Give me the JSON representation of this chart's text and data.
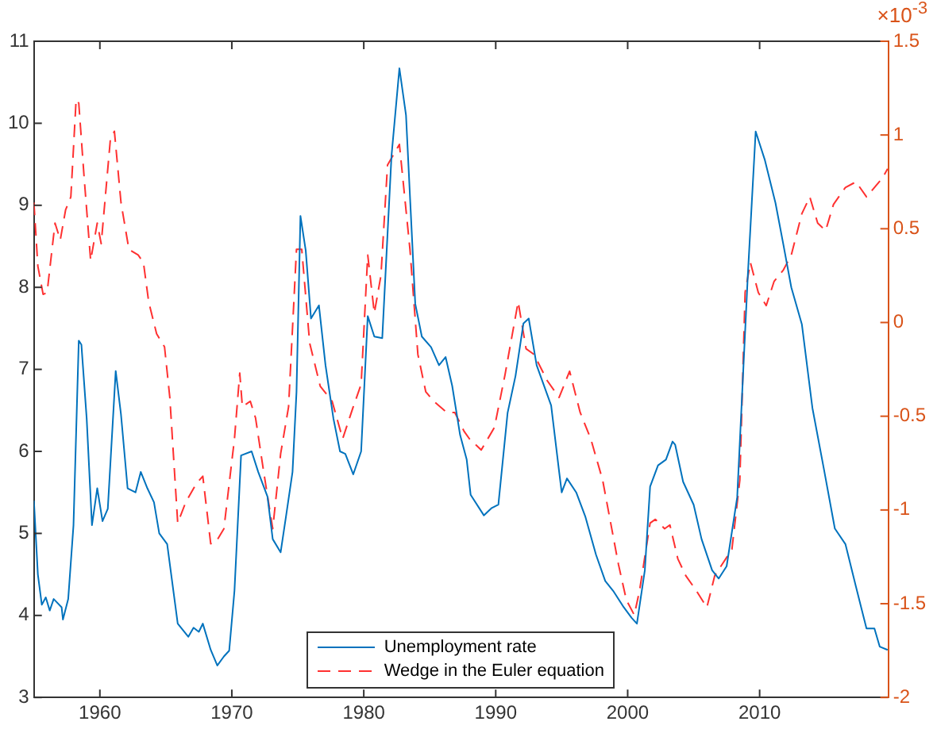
{
  "chart_data": {
    "type": "line",
    "x": [
      1955.0,
      1955.3,
      1955.6,
      1955.9,
      1956.2,
      1956.5,
      1957.1,
      1957.2,
      1957.6,
      1958.0,
      1958.4,
      1958.6,
      1959.0,
      1959.4,
      1959.8,
      1960.2,
      1960.6,
      1961.2,
      1961.6,
      1962.1,
      1962.7,
      1963.1,
      1963.6,
      1964.1,
      1964.5,
      1965.1,
      1965.9,
      1966.7,
      1967.1,
      1967.5,
      1967.8,
      1968.4,
      1968.9,
      1969.4,
      1969.8,
      1970.2,
      1970.7,
      1971.5,
      1972.0,
      1972.7,
      1973.1,
      1973.7,
      1974.1,
      1974.6,
      1974.9,
      1975.2,
      1975.6,
      1976.0,
      1976.6,
      1977.1,
      1977.7,
      1978.2,
      1978.6,
      1979.2,
      1979.8,
      1980.3,
      1980.8,
      1981.4,
      1982.1,
      1982.7,
      1983.2,
      1983.9,
      1984.4,
      1985.1,
      1985.7,
      1986.2,
      1986.7,
      1987.3,
      1987.8,
      1988.1,
      1989.1,
      1989.7,
      1990.2,
      1990.9,
      1991.5,
      1992.1,
      1992.5,
      1993.1,
      1994.2,
      1994.8,
      1995.0,
      1995.4,
      1996.1,
      1996.8,
      1997.6,
      1998.3,
      1998.9,
      1999.7,
      2000.3,
      2000.7,
      2001.3,
      2001.7,
      2002.3,
      2002.9,
      2003.4,
      2003.6,
      2004.2,
      2005.0,
      2005.6,
      2006.4,
      2006.9,
      2007.5,
      2008.3,
      2009.1,
      2009.7,
      2010.4,
      2011.2,
      2011.8,
      2012.4,
      2013.2,
      2014.0,
      2014.9,
      2015.7,
      2016.5,
      2017.3,
      2018.1,
      2018.7,
      2019.1,
      2019.7
    ],
    "series": [
      {
        "name": "Unemployment rate",
        "color": "#0072bd",
        "line_style": "solid",
        "values": [
          5.4,
          4.5,
          4.13,
          4.22,
          4.06,
          4.2,
          4.1,
          3.95,
          4.2,
          5.1,
          7.35,
          7.3,
          6.4,
          5.1,
          5.55,
          5.15,
          5.3,
          6.98,
          6.45,
          5.55,
          5.5,
          5.75,
          5.55,
          5.38,
          5.0,
          4.87,
          3.9,
          3.74,
          3.85,
          3.8,
          3.9,
          3.58,
          3.39,
          3.5,
          3.57,
          4.3,
          5.95,
          6.0,
          5.75,
          5.45,
          4.93,
          4.77,
          5.2,
          5.75,
          6.72,
          8.87,
          8.45,
          7.62,
          7.78,
          7.05,
          6.4,
          6.0,
          5.97,
          5.72,
          6.0,
          7.65,
          7.4,
          7.38,
          9.6,
          10.67,
          10.1,
          7.8,
          7.4,
          7.27,
          7.05,
          7.15,
          6.8,
          6.2,
          5.9,
          5.47,
          5.22,
          5.31,
          5.35,
          6.47,
          6.92,
          7.56,
          7.62,
          7.05,
          6.56,
          5.76,
          5.5,
          5.67,
          5.5,
          5.2,
          4.74,
          4.42,
          4.3,
          4.1,
          3.97,
          3.9,
          4.55,
          5.57,
          5.83,
          5.9,
          6.12,
          6.08,
          5.63,
          5.35,
          4.93,
          4.55,
          4.45,
          4.6,
          5.44,
          8.13,
          9.9,
          9.55,
          9.03,
          8.52,
          8.0,
          7.55,
          6.53,
          5.76,
          5.06,
          4.87,
          4.35,
          3.84,
          3.84,
          3.62,
          3.58
        ]
      },
      {
        "name": "Wedge in the Euler equation",
        "color": "#ff3030",
        "line_style": "dashed",
        "axis": "y2",
        "x": [
          1955.0,
          1955.3,
          1955.7,
          1956.0,
          1956.6,
          1957.0,
          1957.4,
          1957.8,
          1958.2,
          1958.4,
          1958.8,
          1959.3,
          1959.8,
          1960.1,
          1960.8,
          1961.1,
          1961.6,
          1962.2,
          1962.9,
          1963.3,
          1963.7,
          1964.3,
          1964.9,
          1965.3,
          1965.9,
          1966.5,
          1967.3,
          1967.8,
          1968.4,
          1968.8,
          1969.4,
          1970.2,
          1970.6,
          1970.8,
          1971.4,
          1971.8,
          1972.4,
          1973.1,
          1973.7,
          1974.3,
          1974.9,
          1975.3,
          1975.9,
          1976.7,
          1977.6,
          1978.4,
          1979.2,
          1979.8,
          1980.3,
          1980.8,
          1981.3,
          1981.8,
          1982.7,
          1983.5,
          1984.1,
          1984.7,
          1985.3,
          1986.3,
          1986.9,
          1987.6,
          1988.0,
          1988.9,
          1989.9,
          1990.7,
          1991.7,
          1992.3,
          1992.9,
          1993.9,
          1994.8,
          1995.6,
          1996.4,
          1997.2,
          1998.1,
          1999.3,
          1999.9,
          2000.5,
          2000.9,
          2001.7,
          2002.1,
          2002.8,
          2003.2,
          2003.8,
          2004.4,
          2005.2,
          2006.0,
          2006.6,
          2007.9,
          2008.5,
          2008.9,
          2009.3,
          2009.9,
          2010.5,
          2011.1,
          2011.8,
          2012.4,
          2013.2,
          2013.8,
          2014.4,
          2015.0,
          2015.6,
          2016.5,
          2017.3,
          2018.1,
          2018.7,
          2019.3,
          2019.7
        ],
        "values": [
          0.64,
          0.3,
          0.15,
          0.16,
          0.53,
          0.44,
          0.6,
          0.67,
          1.19,
          1.17,
          0.78,
          0.33,
          0.53,
          0.42,
          0.98,
          1.02,
          0.64,
          0.39,
          0.36,
          0.32,
          0.11,
          -0.06,
          -0.13,
          -0.4,
          -1.07,
          -0.96,
          -0.86,
          -0.82,
          -1.18,
          -1.17,
          -1.1,
          -0.62,
          -0.27,
          -0.45,
          -0.42,
          -0.51,
          -0.79,
          -1.1,
          -0.7,
          -0.45,
          0.39,
          0.39,
          -0.11,
          -0.34,
          -0.42,
          -0.62,
          -0.45,
          -0.33,
          0.36,
          0.05,
          0.25,
          0.84,
          0.95,
          0.39,
          -0.17,
          -0.37,
          -0.42,
          -0.48,
          -0.48,
          -0.58,
          -0.62,
          -0.68,
          -0.56,
          -0.28,
          0.11,
          -0.14,
          -0.17,
          -0.31,
          -0.4,
          -0.26,
          -0.48,
          -0.62,
          -0.84,
          -1.29,
          -1.48,
          -1.56,
          -1.43,
          -1.07,
          -1.05,
          -1.1,
          -1.08,
          -1.26,
          -1.35,
          -1.43,
          -1.52,
          -1.35,
          -1.21,
          -0.84,
          0.16,
          0.32,
          0.16,
          0.09,
          0.22,
          0.28,
          0.36,
          0.58,
          0.67,
          0.53,
          0.49,
          0.63,
          0.72,
          0.75,
          0.67,
          0.72,
          0.77,
          0.82
        ]
      }
    ],
    "xlim": [
      1955,
      2019.75
    ],
    "xticks": [
      1960,
      1970,
      1980,
      1990,
      2000,
      2010
    ],
    "ylim": [
      3,
      11
    ],
    "yticks": [
      3,
      4,
      5,
      6,
      7,
      8,
      9,
      10,
      11
    ],
    "y2lim": [
      -2,
      1.5
    ],
    "y2ticks": [
      -2,
      -1.5,
      -1,
      -0.5,
      0,
      0.5,
      1,
      1.5
    ],
    "annotations": [
      "×10$^{-3}$"
    ],
    "legend": "bottom",
    "grid": false,
    "marker": "none"
  }
}
